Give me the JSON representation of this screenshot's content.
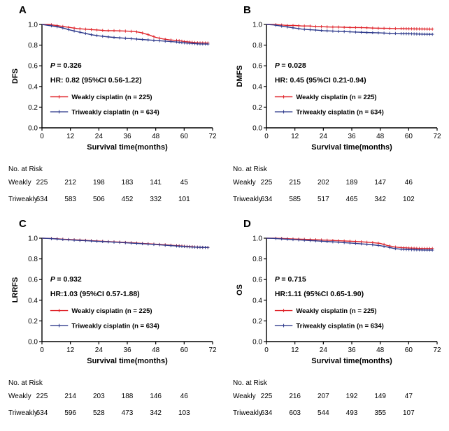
{
  "figure": {
    "panels_order": [
      "A",
      "B",
      "C",
      "D"
    ]
  },
  "chart_data": [
    {
      "type": "line",
      "panel": "A",
      "ylabel": "DFS",
      "xlabel": "Survival time(months)",
      "xlim": [
        0,
        72
      ],
      "ylim": [
        0.0,
        1.0
      ],
      "xticks": [
        0,
        12,
        24,
        36,
        48,
        60,
        72
      ],
      "yticks": [
        0.0,
        0.2,
        0.4,
        0.6,
        0.8,
        1.0
      ],
      "p_label": "P",
      "p_value": "= 0.326",
      "hr_text": "HR: 0.82 (95%CI 0.56-1.22)",
      "series": [
        {
          "name": "Weakly cisplatin (n = 225)",
          "color": "#e0262c",
          "x": [
            0,
            3,
            6,
            9,
            12,
            15,
            18,
            21,
            24,
            27,
            30,
            33,
            36,
            39,
            42,
            45,
            48,
            51,
            54,
            57,
            60,
            63,
            66,
            70
          ],
          "y": [
            1.0,
            1.0,
            0.99,
            0.98,
            0.97,
            0.96,
            0.955,
            0.95,
            0.945,
            0.94,
            0.94,
            0.938,
            0.935,
            0.932,
            0.92,
            0.9,
            0.875,
            0.86,
            0.85,
            0.845,
            0.835,
            0.828,
            0.822,
            0.82
          ]
        },
        {
          "name": "Triweakly cisplatin (n = 634)",
          "color": "#2e3a8c",
          "x": [
            0,
            3,
            6,
            9,
            12,
            15,
            18,
            21,
            24,
            27,
            30,
            33,
            36,
            39,
            42,
            45,
            48,
            51,
            54,
            57,
            60,
            63,
            66,
            70
          ],
          "y": [
            1.0,
            0.99,
            0.98,
            0.965,
            0.945,
            0.93,
            0.915,
            0.9,
            0.89,
            0.882,
            0.875,
            0.87,
            0.865,
            0.86,
            0.855,
            0.85,
            0.845,
            0.84,
            0.835,
            0.83,
            0.822,
            0.817,
            0.812,
            0.81
          ]
        }
      ],
      "risk_table": {
        "title": "No. at Risk",
        "timepoints": [
          0,
          12,
          24,
          36,
          48,
          60
        ],
        "rows": [
          {
            "label": "Weakly",
            "counts": [
              225,
              212,
              198,
              183,
              141,
              45
            ]
          },
          {
            "label": "Triweakly",
            "counts": [
              634,
              583,
              506,
              452,
              332,
              101
            ]
          }
        ]
      }
    },
    {
      "type": "line",
      "panel": "B",
      "ylabel": "DMFS",
      "xlabel": "Survival time(months)",
      "xlim": [
        0,
        72
      ],
      "ylim": [
        0.0,
        1.0
      ],
      "xticks": [
        0,
        12,
        24,
        36,
        48,
        60,
        72
      ],
      "yticks": [
        0.0,
        0.2,
        0.4,
        0.6,
        0.8,
        1.0
      ],
      "p_label": "P",
      "p_value": "= 0.028",
      "hr_text": "HR: 0.45 (95%CI 0.21-0.94)",
      "series": [
        {
          "name": "Weakly cisplatin (n = 225)",
          "color": "#e0262c",
          "x": [
            0,
            3,
            6,
            9,
            12,
            15,
            18,
            21,
            24,
            27,
            30,
            33,
            36,
            39,
            42,
            45,
            48,
            51,
            54,
            57,
            60,
            63,
            66,
            70
          ],
          "y": [
            1.0,
            1.0,
            0.995,
            0.99,
            0.99,
            0.985,
            0.985,
            0.98,
            0.978,
            0.975,
            0.975,
            0.972,
            0.97,
            0.97,
            0.968,
            0.965,
            0.963,
            0.962,
            0.96,
            0.96,
            0.958,
            0.957,
            0.956,
            0.955
          ]
        },
        {
          "name": "Triweakly cisplatin (n = 634)",
          "color": "#2e3a8c",
          "x": [
            0,
            3,
            6,
            9,
            12,
            15,
            18,
            21,
            24,
            27,
            30,
            33,
            36,
            39,
            42,
            45,
            48,
            51,
            54,
            57,
            60,
            63,
            66,
            70
          ],
          "y": [
            1.0,
            0.995,
            0.985,
            0.975,
            0.965,
            0.955,
            0.95,
            0.945,
            0.94,
            0.937,
            0.934,
            0.931,
            0.928,
            0.925,
            0.922,
            0.92,
            0.918,
            0.915,
            0.913,
            0.911,
            0.91,
            0.908,
            0.906,
            0.905
          ]
        }
      ],
      "risk_table": {
        "title": "No. at Risk",
        "timepoints": [
          0,
          12,
          24,
          36,
          48,
          60
        ],
        "rows": [
          {
            "label": "Weakly",
            "counts": [
              225,
              215,
              202,
              189,
              147,
              46
            ]
          },
          {
            "label": "Triweakly",
            "counts": [
              634,
              585,
              517,
              465,
              342,
              102
            ]
          }
        ]
      }
    },
    {
      "type": "line",
      "panel": "C",
      "ylabel": "LRRFS",
      "xlabel": "Survival time(months)",
      "xlim": [
        0,
        72
      ],
      "ylim": [
        0.0,
        1.0
      ],
      "xticks": [
        0,
        12,
        24,
        36,
        48,
        60,
        72
      ],
      "yticks": [
        0.0,
        0.2,
        0.4,
        0.6,
        0.8,
        1.0
      ],
      "p_label": "P",
      "p_value": "= 0.932",
      "hr_text": "HR:1.03 (95%CI 0.57-1.88)",
      "series": [
        {
          "name": "Weakly cisplatin (n = 225)",
          "color": "#e0262c",
          "x": [
            0,
            3,
            6,
            9,
            12,
            15,
            18,
            21,
            24,
            27,
            30,
            33,
            36,
            39,
            42,
            45,
            48,
            51,
            54,
            57,
            60,
            63,
            66,
            70
          ],
          "y": [
            1.0,
            0.998,
            0.995,
            0.99,
            0.987,
            0.983,
            0.98,
            0.976,
            0.972,
            0.968,
            0.965,
            0.962,
            0.958,
            0.955,
            0.95,
            0.946,
            0.942,
            0.938,
            0.933,
            0.928,
            0.922,
            0.918,
            0.913,
            0.91
          ]
        },
        {
          "name": "Triweakly cisplatin (n = 634)",
          "color": "#2e3a8c",
          "x": [
            0,
            3,
            6,
            9,
            12,
            15,
            18,
            21,
            24,
            27,
            30,
            33,
            36,
            39,
            42,
            45,
            48,
            51,
            54,
            57,
            60,
            63,
            66,
            70
          ],
          "y": [
            1.0,
            0.997,
            0.993,
            0.988,
            0.984,
            0.98,
            0.977,
            0.973,
            0.969,
            0.966,
            0.962,
            0.959,
            0.955,
            0.951,
            0.947,
            0.943,
            0.939,
            0.934,
            0.929,
            0.924,
            0.92,
            0.915,
            0.912,
            0.91
          ]
        }
      ],
      "risk_table": {
        "title": "No. at Risk",
        "timepoints": [
          0,
          12,
          24,
          36,
          48,
          60
        ],
        "rows": [
          {
            "label": "Weakly",
            "counts": [
              225,
              214,
              203,
              188,
              146,
              46
            ]
          },
          {
            "label": "Triweakly",
            "counts": [
              634,
              596,
              528,
              473,
              342,
              103
            ]
          }
        ]
      }
    },
    {
      "type": "line",
      "panel": "D",
      "ylabel": "OS",
      "xlabel": "Survival time(months)",
      "xlim": [
        0,
        72
      ],
      "ylim": [
        0.0,
        1.0
      ],
      "xticks": [
        0,
        12,
        24,
        36,
        48,
        60,
        72
      ],
      "yticks": [
        0.0,
        0.2,
        0.4,
        0.6,
        0.8,
        1.0
      ],
      "p_label": "P",
      "p_value": "= 0.715",
      "hr_text": "HR:1.11 (95%CI 0.65-1.90)",
      "series": [
        {
          "name": "Weakly cisplatin (n = 225)",
          "color": "#e0262c",
          "x": [
            0,
            3,
            6,
            9,
            12,
            15,
            18,
            21,
            24,
            27,
            30,
            33,
            36,
            39,
            42,
            45,
            48,
            51,
            54,
            57,
            60,
            63,
            66,
            70
          ],
          "y": [
            1.0,
            1.0,
            0.998,
            0.995,
            0.992,
            0.99,
            0.988,
            0.985,
            0.982,
            0.979,
            0.976,
            0.973,
            0.97,
            0.966,
            0.962,
            0.957,
            0.95,
            0.93,
            0.915,
            0.908,
            0.905,
            0.902,
            0.9,
            0.9
          ]
        },
        {
          "name": "Triweakly cisplatin (n = 634)",
          "color": "#2e3a8c",
          "x": [
            0,
            3,
            6,
            9,
            12,
            15,
            18,
            21,
            24,
            27,
            30,
            33,
            36,
            39,
            42,
            45,
            48,
            51,
            54,
            57,
            60,
            63,
            66,
            70
          ],
          "y": [
            1.0,
            0.998,
            0.994,
            0.99,
            0.986,
            0.982,
            0.978,
            0.974,
            0.97,
            0.966,
            0.962,
            0.957,
            0.952,
            0.947,
            0.942,
            0.936,
            0.928,
            0.915,
            0.9,
            0.893,
            0.89,
            0.888,
            0.886,
            0.885
          ]
        }
      ],
      "risk_table": {
        "title": "No. at Risk",
        "timepoints": [
          0,
          12,
          24,
          36,
          48,
          60
        ],
        "rows": [
          {
            "label": "Weakly",
            "counts": [
              225,
              216,
              207,
              192,
              149,
              47
            ]
          },
          {
            "label": "Triweakly",
            "counts": [
              634,
              603,
              544,
              493,
              355,
              107
            ]
          }
        ]
      }
    }
  ]
}
